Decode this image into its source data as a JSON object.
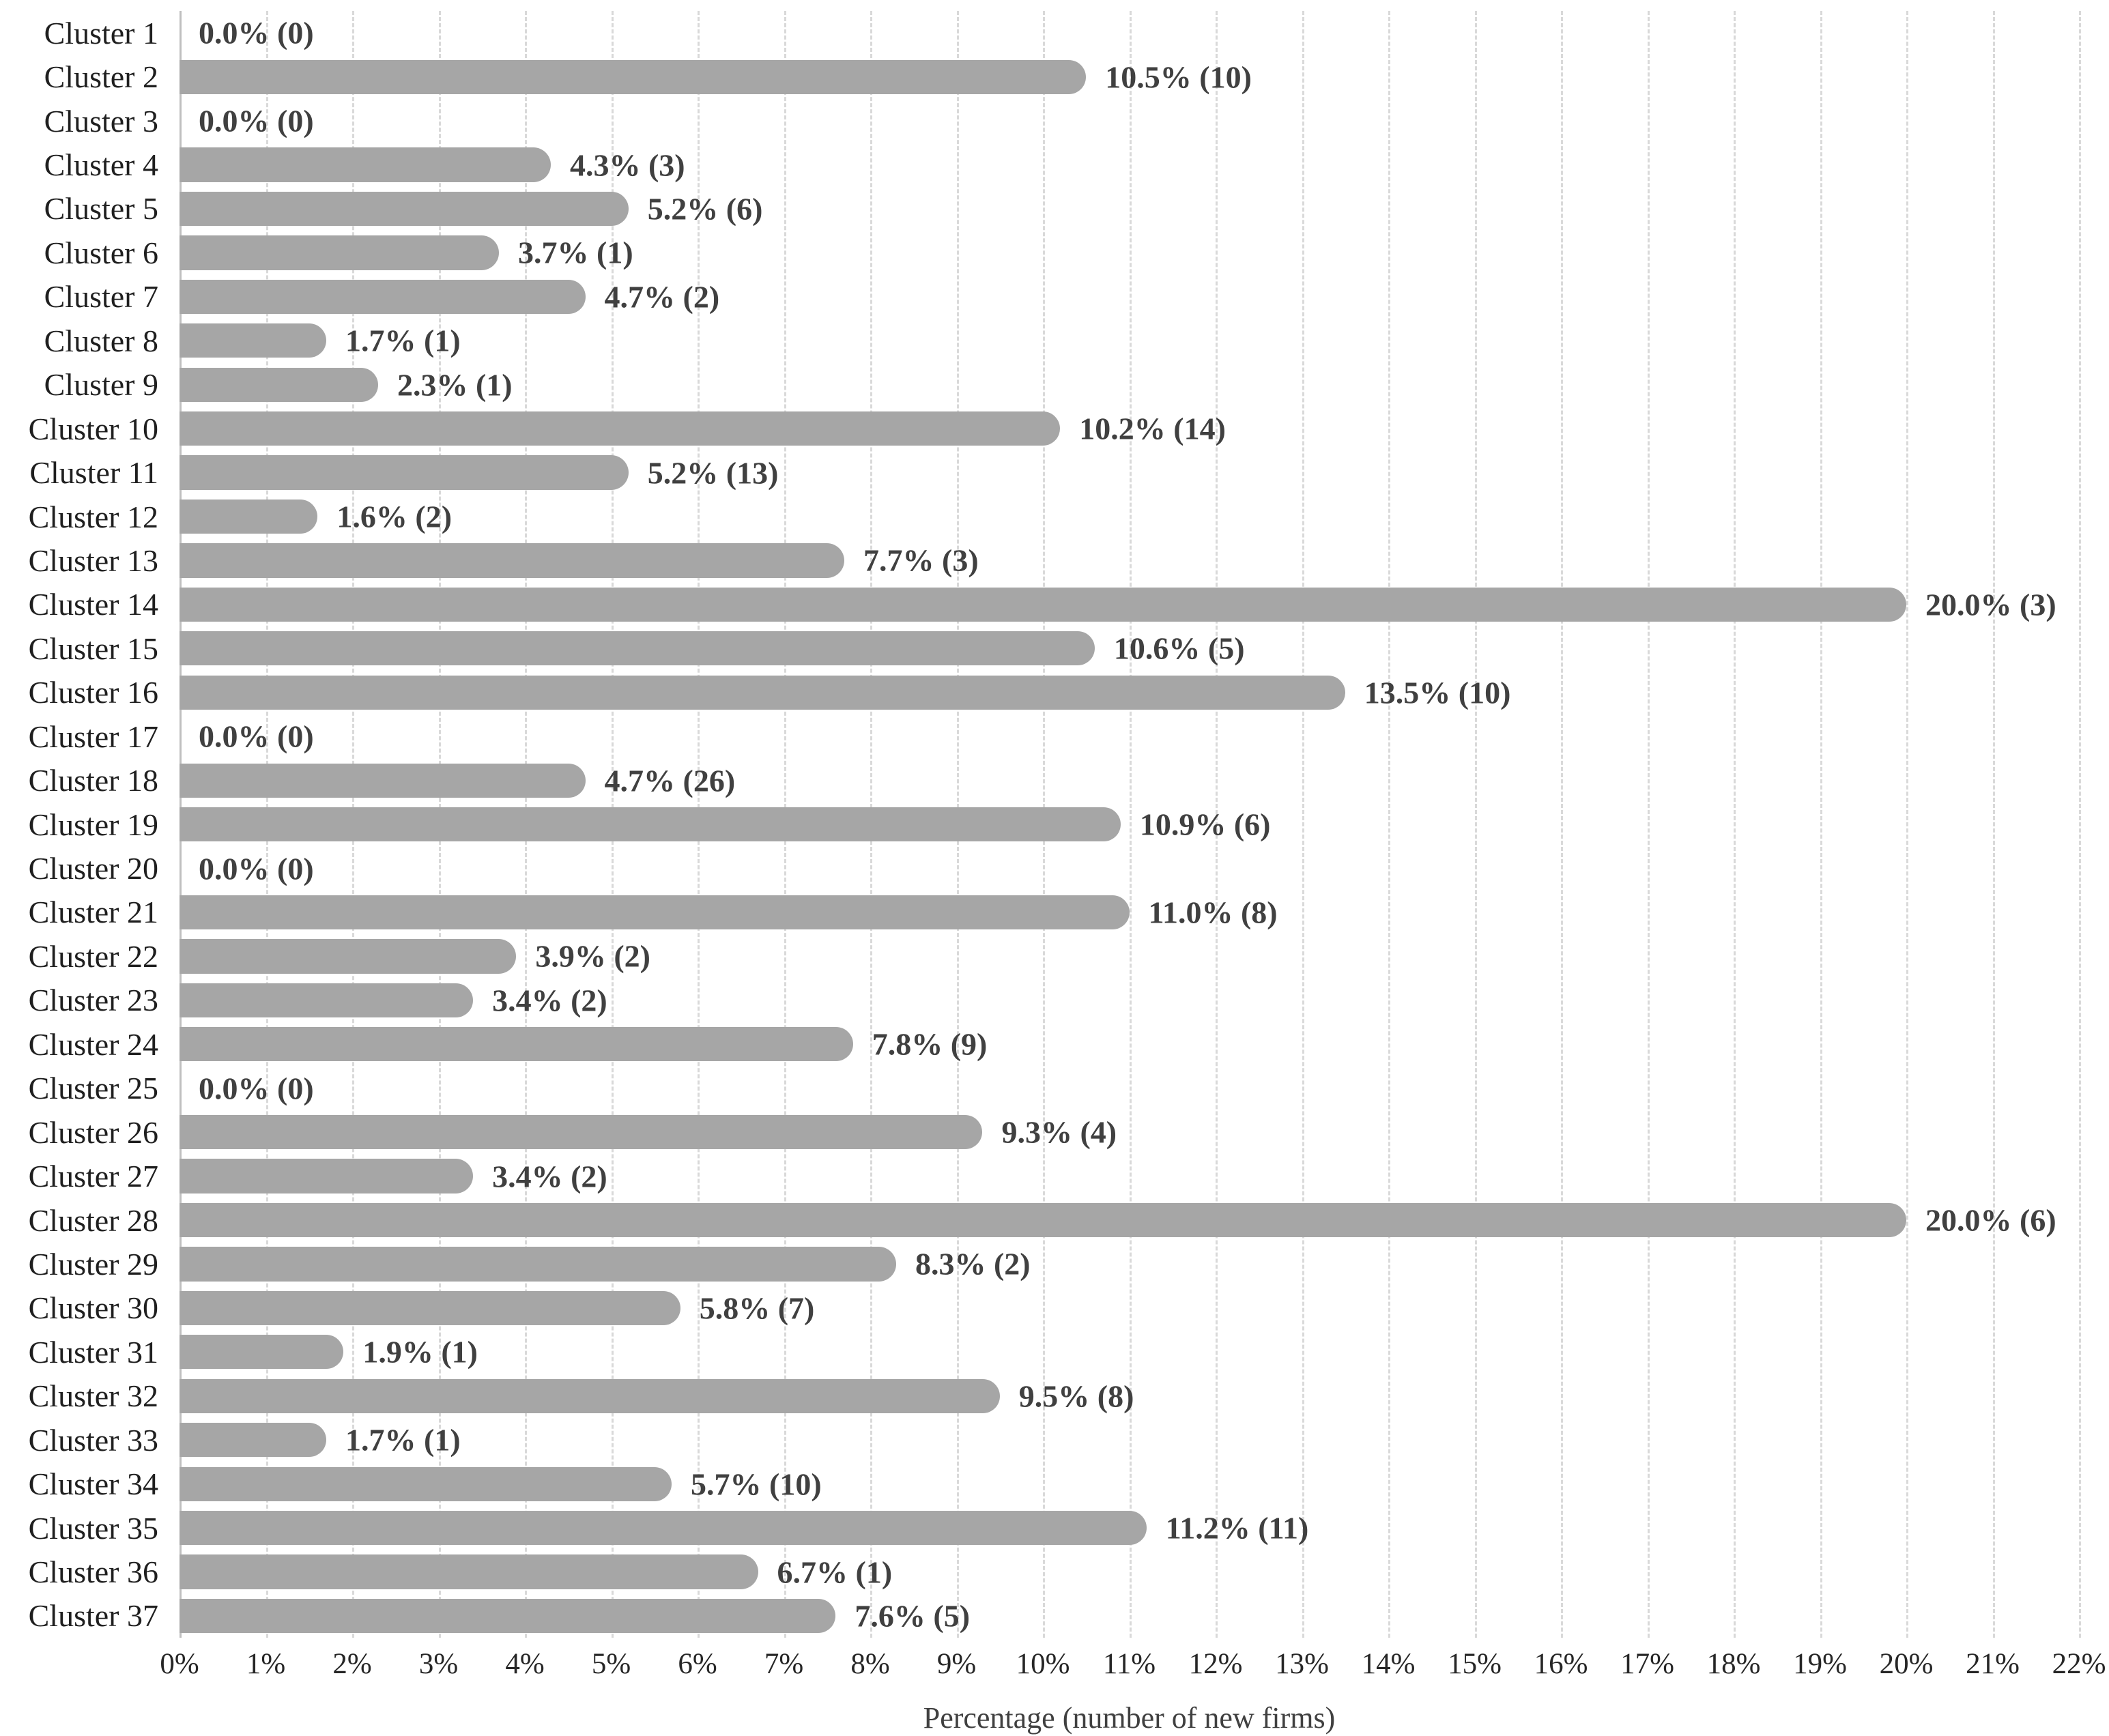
{
  "chart_data": {
    "type": "bar",
    "orientation": "horizontal",
    "title": "",
    "xlabel": "Percentage (number of new firms)",
    "ylabel": "",
    "xlim": [
      0,
      22
    ],
    "x_tick_step": 1,
    "x_ticks": [
      "0%",
      "1%",
      "2%",
      "3%",
      "4%",
      "5%",
      "6%",
      "7%",
      "8%",
      "9%",
      "10%",
      "11%",
      "12%",
      "13%",
      "14%",
      "15%",
      "16%",
      "17%",
      "18%",
      "19%",
      "20%",
      "21%",
      "22%"
    ],
    "grid": "vertical-dashed",
    "legend": "none",
    "bar_color": "#A6A6A6",
    "gridline_color": "#D9D9D9",
    "axis_line_color": "#BFBFBF",
    "value_label_color": "#404040",
    "category_label_color": "#1F1F1F",
    "rows": [
      {
        "category": "Cluster 1",
        "percent": 0.0,
        "count": 0,
        "value_label": "0.0% (0)"
      },
      {
        "category": "Cluster 2",
        "percent": 10.5,
        "count": 10,
        "value_label": "10.5% (10)"
      },
      {
        "category": "Cluster 3",
        "percent": 0.0,
        "count": 0,
        "value_label": "0.0% (0)"
      },
      {
        "category": "Cluster 4",
        "percent": 4.3,
        "count": 3,
        "value_label": "4.3% (3)"
      },
      {
        "category": "Cluster 5",
        "percent": 5.2,
        "count": 6,
        "value_label": "5.2% (6)"
      },
      {
        "category": "Cluster 6",
        "percent": 3.7,
        "count": 1,
        "value_label": "3.7% (1)"
      },
      {
        "category": "Cluster 7",
        "percent": 4.7,
        "count": 2,
        "value_label": "4.7% (2)"
      },
      {
        "category": "Cluster 8",
        "percent": 1.7,
        "count": 1,
        "value_label": "1.7% (1)"
      },
      {
        "category": "Cluster 9",
        "percent": 2.3,
        "count": 1,
        "value_label": "2.3% (1)"
      },
      {
        "category": "Cluster 10",
        "percent": 10.2,
        "count": 14,
        "value_label": "10.2% (14)"
      },
      {
        "category": "Cluster 11",
        "percent": 5.2,
        "count": 13,
        "value_label": "5.2% (13)"
      },
      {
        "category": "Cluster 12",
        "percent": 1.6,
        "count": 2,
        "value_label": "1.6% (2)"
      },
      {
        "category": "Cluster 13",
        "percent": 7.7,
        "count": 3,
        "value_label": "7.7% (3)"
      },
      {
        "category": "Cluster 14",
        "percent": 20.0,
        "count": 3,
        "value_label": "20.0% (3)"
      },
      {
        "category": "Cluster 15",
        "percent": 10.6,
        "count": 5,
        "value_label": "10.6% (5)"
      },
      {
        "category": "Cluster 16",
        "percent": 13.5,
        "count": 10,
        "value_label": "13.5% (10)"
      },
      {
        "category": "Cluster 17",
        "percent": 0.0,
        "count": 0,
        "value_label": "0.0% (0)"
      },
      {
        "category": "Cluster 18",
        "percent": 4.7,
        "count": 26,
        "value_label": "4.7% (26)"
      },
      {
        "category": "Cluster 19",
        "percent": 10.9,
        "count": 6,
        "value_label": "10.9% (6)"
      },
      {
        "category": "Cluster 20",
        "percent": 0.0,
        "count": 0,
        "value_label": "0.0% (0)"
      },
      {
        "category": "Cluster 21",
        "percent": 11.0,
        "count": 8,
        "value_label": "11.0% (8)"
      },
      {
        "category": "Cluster 22",
        "percent": 3.9,
        "count": 2,
        "value_label": "3.9% (2)"
      },
      {
        "category": "Cluster 23",
        "percent": 3.4,
        "count": 2,
        "value_label": "3.4% (2)"
      },
      {
        "category": "Cluster 24",
        "percent": 7.8,
        "count": 9,
        "value_label": "7.8% (9)"
      },
      {
        "category": "Cluster 25",
        "percent": 0.0,
        "count": 0,
        "value_label": "0.0% (0)"
      },
      {
        "category": "Cluster 26",
        "percent": 9.3,
        "count": 4,
        "value_label": "9.3% (4)"
      },
      {
        "category": "Cluster 27",
        "percent": 3.4,
        "count": 2,
        "value_label": "3.4% (2)"
      },
      {
        "category": "Cluster 28",
        "percent": 20.0,
        "count": 6,
        "value_label": "20.0% (6)"
      },
      {
        "category": "Cluster 29",
        "percent": 8.3,
        "count": 2,
        "value_label": "8.3% (2)"
      },
      {
        "category": "Cluster 30",
        "percent": 5.8,
        "count": 7,
        "value_label": "5.8% (7)"
      },
      {
        "category": "Cluster 31",
        "percent": 1.9,
        "count": 1,
        "value_label": "1.9% (1)"
      },
      {
        "category": "Cluster 32",
        "percent": 9.5,
        "count": 8,
        "value_label": "9.5% (8)"
      },
      {
        "category": "Cluster 33",
        "percent": 1.7,
        "count": 1,
        "value_label": "1.7% (1)"
      },
      {
        "category": "Cluster 34",
        "percent": 5.7,
        "count": 10,
        "value_label": "5.7% (10)"
      },
      {
        "category": "Cluster 35",
        "percent": 11.2,
        "count": 11,
        "value_label": "11.2% (11)"
      },
      {
        "category": "Cluster 36",
        "percent": 6.7,
        "count": 1,
        "value_label": "6.7% (1)"
      },
      {
        "category": "Cluster 37",
        "percent": 7.6,
        "count": 5,
        "value_label": "7.6% (5)"
      }
    ]
  }
}
